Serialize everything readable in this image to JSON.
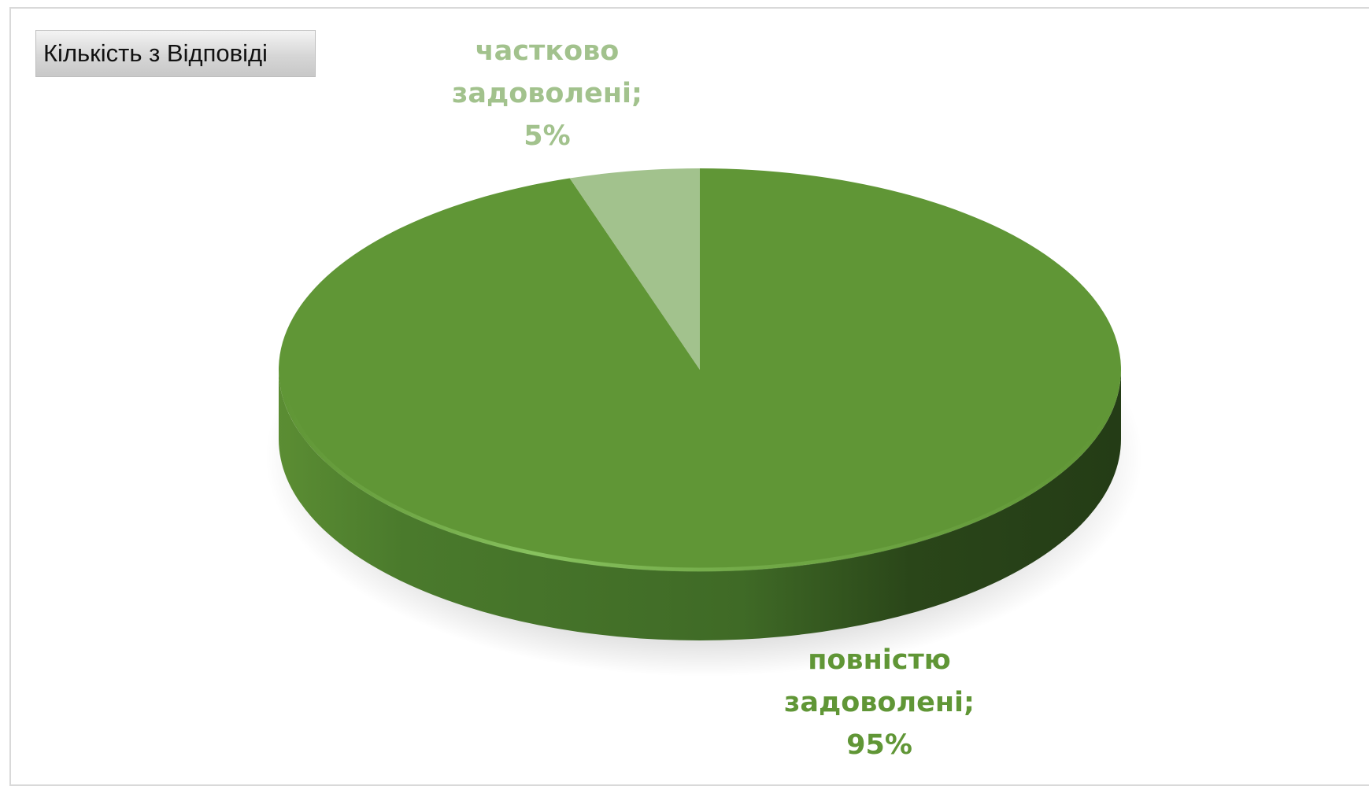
{
  "field_button": {
    "label": "Кількість з Відповіді"
  },
  "chart_data": {
    "type": "pie",
    "style": "3d",
    "title": "",
    "slices": [
      {
        "label": "повністю задоволені",
        "value": 95,
        "value_label": "95%",
        "color": "#609636",
        "label_lines": [
          "повністю",
          "задоволені;",
          "95%"
        ]
      },
      {
        "label": "частково задоволені",
        "value": 5,
        "value_label": "5%",
        "color": "#a2c28d",
        "label_lines": [
          "частково",
          "задоволені;",
          "5%"
        ]
      }
    ],
    "start_angle_deg": 0,
    "direction": "clockwise",
    "legend": "none"
  }
}
